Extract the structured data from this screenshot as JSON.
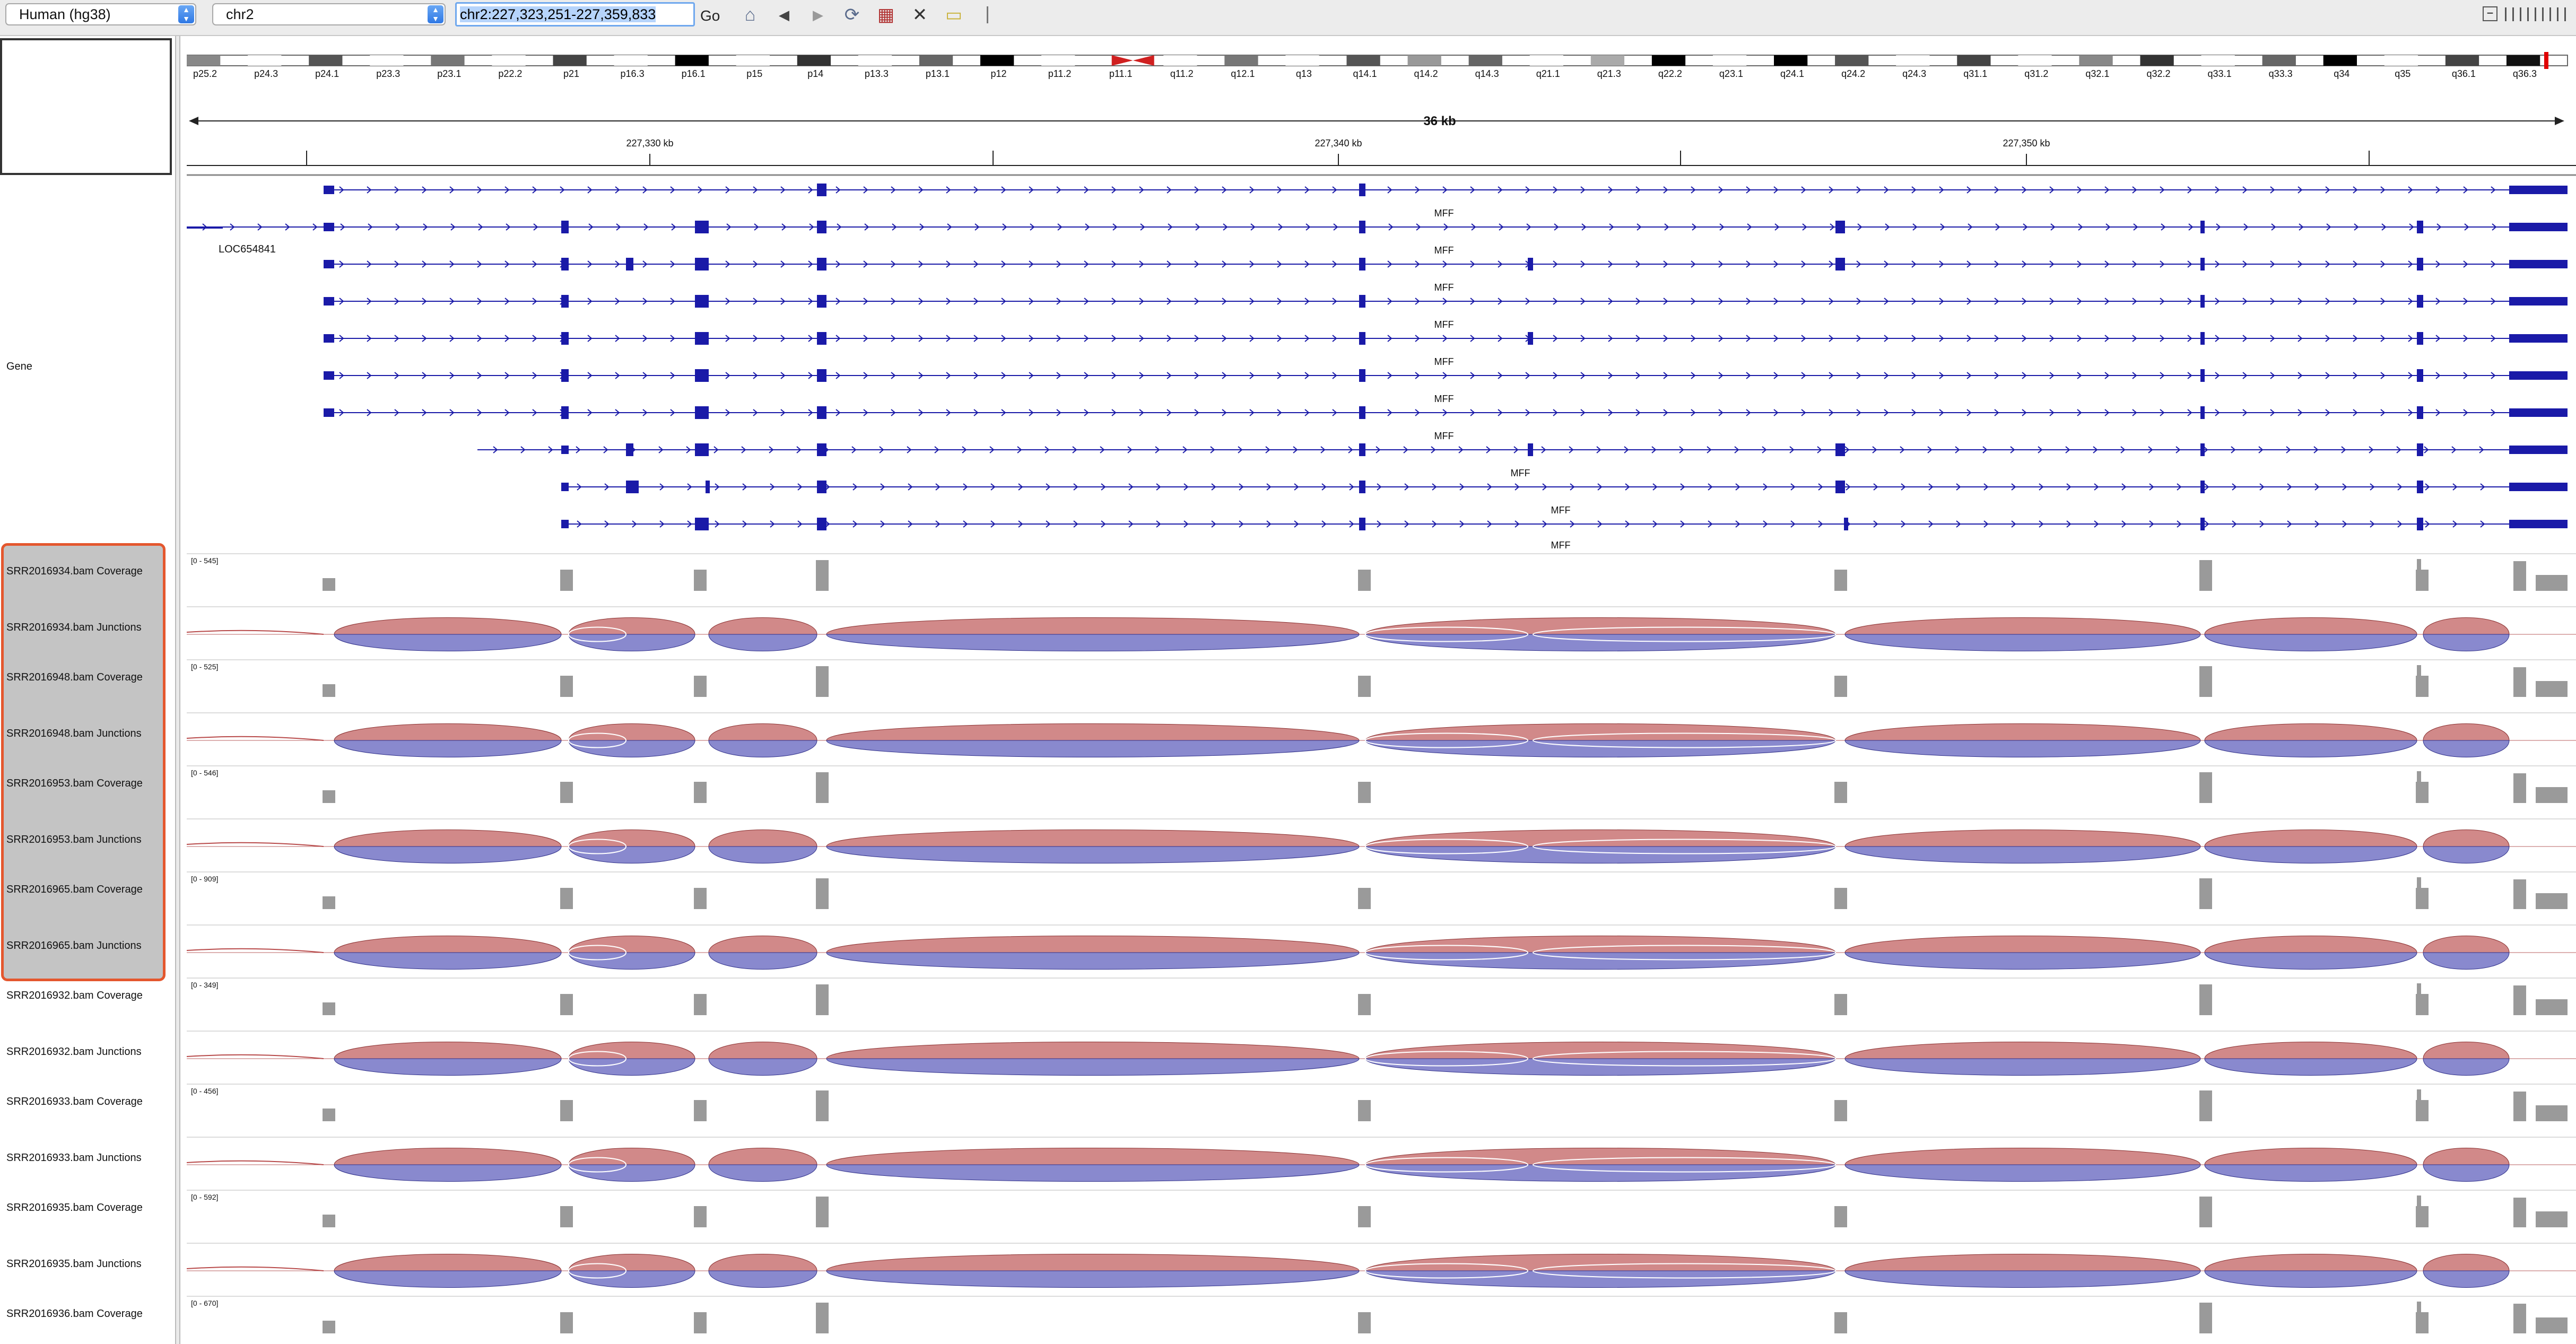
{
  "toolbar": {
    "genome": "Human (hg38)",
    "chromosome": "chr2",
    "locus": "chr2:227,323,251-227,359,833",
    "go_label": "Go",
    "icons": [
      "home-icon",
      "back-icon",
      "forward-icon",
      "refresh-icon",
      "roi-icon",
      "zoom-icon",
      "popup-icon"
    ]
  },
  "ideogram": {
    "bands": [
      "p25.2",
      "p24.3",
      "p24.1",
      "p23.3",
      "p23.1",
      "p22.2",
      "p21",
      "p16.3",
      "p16.1",
      "p15",
      "p14",
      "p13.3",
      "p13.1",
      "p12",
      "p11.2",
      "p11.1",
      "q11.2",
      "q12.1",
      "q13",
      "q14.1",
      "q14.2",
      "q14.3",
      "q21.1",
      "q21.3",
      "q22.2",
      "q23.1",
      "q24.1",
      "q24.2",
      "q24.3",
      "q31.1",
      "q31.2",
      "q32.1",
      "q32.2",
      "q33.1",
      "q33.3",
      "q34",
      "q35",
      "q36.1",
      "q36.3"
    ]
  },
  "ruler": {
    "span_label": "36 kb",
    "ticks": [
      "227,330 kb",
      "227,340 kb",
      "227,350 kb"
    ]
  },
  "gene_track": {
    "name": "Gene",
    "locus_label": "LOC654841",
    "transcript_label": "MFF"
  },
  "tracks": [
    {
      "name": "SRR2016934.bam Coverage",
      "type": "coverage",
      "range": "[0 - 545]"
    },
    {
      "name": "SRR2016934.bam Junctions",
      "type": "junctions"
    },
    {
      "name": "SRR2016948.bam Coverage",
      "type": "coverage",
      "range": "[0 - 525]"
    },
    {
      "name": "SRR2016948.bam Junctions",
      "type": "junctions"
    },
    {
      "name": "SRR2016953.bam Coverage",
      "type": "coverage",
      "range": "[0 - 546]"
    },
    {
      "name": "SRR2016953.bam Junctions",
      "type": "junctions"
    },
    {
      "name": "SRR2016965.bam Coverage",
      "type": "coverage",
      "range": "[0 - 909]"
    },
    {
      "name": "SRR2016965.bam Junctions",
      "type": "junctions"
    },
    {
      "name": "SRR2016932.bam Coverage",
      "type": "coverage",
      "range": "[0 - 349]"
    },
    {
      "name": "SRR2016932.bam Junctions",
      "type": "junctions"
    },
    {
      "name": "SRR2016933.bam Coverage",
      "type": "coverage",
      "range": "[0 - 456]"
    },
    {
      "name": "SRR2016933.bam Junctions",
      "type": "junctions"
    },
    {
      "name": "SRR2016935.bam Coverage",
      "type": "coverage",
      "range": "[0 - 592]"
    },
    {
      "name": "SRR2016935.bam Junctions",
      "type": "junctions"
    },
    {
      "name": "SRR2016936.bam Coverage",
      "type": "coverage",
      "range": "[0 - 670]"
    }
  ],
  "colors": {
    "gene": "#1a1aa8",
    "junction_plus": "#b84a4a",
    "junction_minus": "#4a4ab4",
    "coverage": "#9a9a9a",
    "selection_border": "#e4572e"
  }
}
